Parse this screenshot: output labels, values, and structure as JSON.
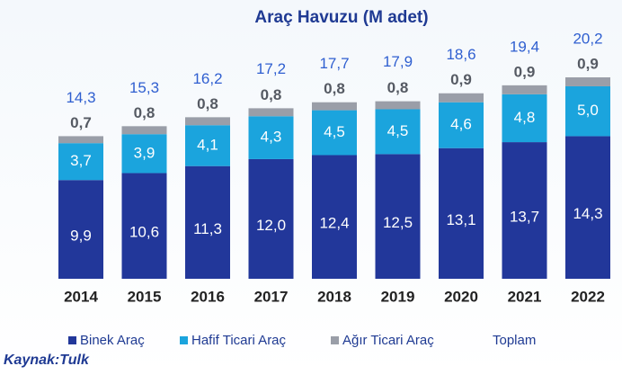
{
  "chart_data": {
    "type": "stacked_bar",
    "title": "Araç Havuzu (M adet)",
    "categories": [
      "2014",
      "2015",
      "2016",
      "2017",
      "2018",
      "2019",
      "2020",
      "2021",
      "2022"
    ],
    "series": [
      {
        "name": "Binek Araç",
        "color": "#22379a",
        "values": [
          9.9,
          10.6,
          11.3,
          12.0,
          12.4,
          12.5,
          13.1,
          13.7,
          14.3
        ],
        "value_labels": [
          "9,9",
          "10,6",
          "11,3",
          "12,0",
          "12,4",
          "12,5",
          "13,1",
          "13,7",
          "14,3"
        ]
      },
      {
        "name": "Hafif Ticari Araç",
        "color": "#1ba4dd",
        "values": [
          3.7,
          3.9,
          4.1,
          4.3,
          4.5,
          4.5,
          4.6,
          4.8,
          5.0
        ],
        "value_labels": [
          "3,7",
          "3,9",
          "4,1",
          "4,3",
          "4,5",
          "4,5",
          "4,6",
          "4,8",
          "5,0"
        ]
      },
      {
        "name": "Ağır Ticari Araç",
        "color": "#9a9ea8",
        "values": [
          0.7,
          0.8,
          0.8,
          0.8,
          0.8,
          0.8,
          0.9,
          0.9,
          0.9
        ],
        "value_labels": [
          "0,7",
          "0,8",
          "0,8",
          "0,8",
          "0,8",
          "0,8",
          "0,9",
          "0,9",
          "0,9"
        ]
      },
      {
        "name": "Toplam",
        "color": "#2f5fd0",
        "values": [
          14.3,
          15.3,
          16.2,
          17.2,
          17.7,
          17.9,
          18.6,
          19.4,
          20.2
        ],
        "value_labels": [
          "14,3",
          "15,3",
          "16,2",
          "17,2",
          "17,7",
          "17,9",
          "18,6",
          "19,4",
          "20,2"
        ]
      }
    ],
    "source": "Kaynak:Tulk"
  }
}
